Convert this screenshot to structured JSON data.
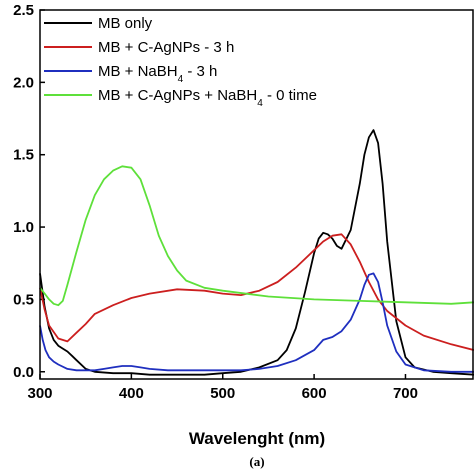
{
  "chart_data": {
    "type": "line",
    "title": "",
    "xlabel": "Wavelenght (nm)",
    "ylabel": "",
    "xlim": [
      300,
      775
    ],
    "ylim": [
      -0.05,
      2.5
    ],
    "xticks": [
      300,
      400,
      500,
      600,
      700
    ],
    "yticks": [
      "0.0",
      "0.5",
      "1.0",
      "1.5",
      "2.0",
      "2.5"
    ],
    "grid": false,
    "legend_placement": "top-left",
    "caption": "(a)",
    "series": [
      {
        "name": "MB only",
        "name_parts": [
          "MB only"
        ],
        "color": "#000000",
        "x": [
          300,
          305,
          310,
          315,
          320,
          325,
          330,
          335,
          340,
          350,
          360,
          380,
          400,
          420,
          450,
          480,
          500,
          520,
          540,
          560,
          570,
          580,
          590,
          600,
          605,
          610,
          615,
          620,
          625,
          630,
          640,
          650,
          655,
          660,
          665,
          670,
          675,
          680,
          690,
          700,
          710,
          730,
          750,
          775
        ],
        "y": [
          0.68,
          0.45,
          0.3,
          0.22,
          0.18,
          0.16,
          0.14,
          0.11,
          0.08,
          0.02,
          0.0,
          -0.01,
          -0.01,
          -0.02,
          -0.02,
          -0.02,
          -0.01,
          0.0,
          0.03,
          0.08,
          0.15,
          0.3,
          0.55,
          0.82,
          0.92,
          0.96,
          0.95,
          0.92,
          0.87,
          0.85,
          0.98,
          1.3,
          1.5,
          1.62,
          1.67,
          1.58,
          1.3,
          0.9,
          0.35,
          0.1,
          0.03,
          0.0,
          -0.01,
          -0.02
        ]
      },
      {
        "name": "MB + C-AgNPs - 3 h",
        "name_parts": [
          "MB + C-AgNPs - 3 h"
        ],
        "color": "#cc1f1f",
        "x": [
          300,
          305,
          310,
          320,
          330,
          340,
          350,
          360,
          380,
          400,
          420,
          450,
          480,
          500,
          520,
          540,
          560,
          580,
          600,
          610,
          620,
          630,
          640,
          650,
          660,
          670,
          680,
          700,
          720,
          750,
          775
        ],
        "y": [
          0.58,
          0.43,
          0.32,
          0.23,
          0.21,
          0.27,
          0.33,
          0.4,
          0.46,
          0.51,
          0.54,
          0.57,
          0.56,
          0.54,
          0.53,
          0.56,
          0.62,
          0.72,
          0.84,
          0.9,
          0.94,
          0.95,
          0.88,
          0.76,
          0.62,
          0.5,
          0.42,
          0.32,
          0.25,
          0.19,
          0.15
        ]
      },
      {
        "name": "MB + NaBH4 - 3 h",
        "name_parts": [
          "MB + NaBH",
          "4",
          " - 3 h"
        ],
        "color": "#1f2fbf",
        "x": [
          300,
          303,
          306,
          310,
          315,
          320,
          330,
          340,
          350,
          360,
          370,
          380,
          390,
          400,
          410,
          420,
          440,
          460,
          480,
          500,
          520,
          540,
          560,
          580,
          600,
          610,
          620,
          630,
          640,
          650,
          655,
          660,
          665,
          670,
          675,
          680,
          690,
          700,
          720,
          750,
          775
        ],
        "y": [
          0.32,
          0.22,
          0.15,
          0.1,
          0.07,
          0.05,
          0.02,
          0.01,
          0.01,
          0.01,
          0.02,
          0.03,
          0.04,
          0.04,
          0.03,
          0.02,
          0.01,
          0.01,
          0.01,
          0.01,
          0.01,
          0.02,
          0.04,
          0.08,
          0.15,
          0.22,
          0.24,
          0.28,
          0.36,
          0.5,
          0.6,
          0.67,
          0.68,
          0.62,
          0.48,
          0.32,
          0.14,
          0.05,
          0.01,
          0.0,
          0.0
        ]
      },
      {
        "name": "MB + C-AgNPs + NaBH4 - 0 time",
        "name_parts": [
          "MB + C-AgNPs + NaBH",
          "4",
          " - 0 time"
        ],
        "color": "#5ee03a",
        "x": [
          300,
          305,
          310,
          315,
          320,
          325,
          330,
          340,
          350,
          360,
          370,
          380,
          390,
          400,
          410,
          420,
          430,
          440,
          450,
          460,
          480,
          500,
          550,
          600,
          650,
          700,
          750,
          775
        ],
        "y": [
          0.58,
          0.54,
          0.5,
          0.47,
          0.46,
          0.49,
          0.6,
          0.83,
          1.05,
          1.22,
          1.33,
          1.39,
          1.42,
          1.41,
          1.33,
          1.15,
          0.94,
          0.8,
          0.7,
          0.63,
          0.58,
          0.56,
          0.52,
          0.5,
          0.49,
          0.48,
          0.47,
          0.48
        ]
      }
    ]
  }
}
